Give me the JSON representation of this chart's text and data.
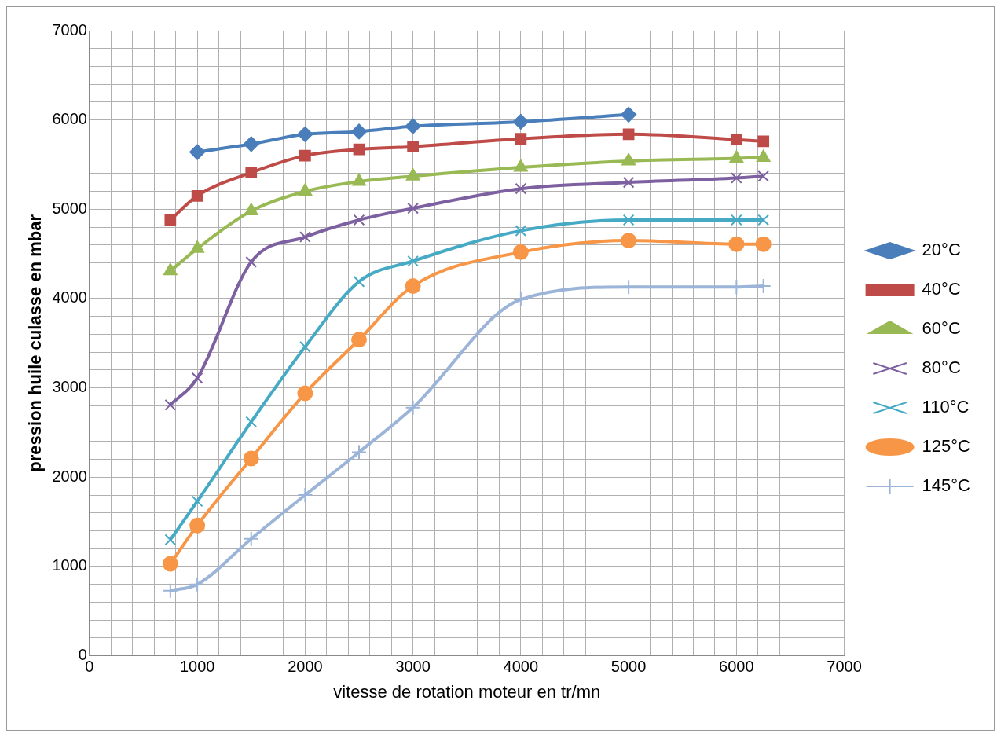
{
  "chart_data": {
    "type": "line",
    "xlabel": "vitesse de rotation moteur en tr/mn",
    "ylabel": "pression huile culasse en mbar",
    "xlim": [
      0,
      7000
    ],
    "ylim": [
      0,
      7000
    ],
    "xticks": [
      0,
      {
        "value": 200,
        "label": null
      },
      {
        "value": 400,
        "label": null
      },
      {
        "value": 600,
        "label": null
      },
      {
        "value": 800,
        "label": null
      },
      1000,
      {
        "value": 1200,
        "label": null
      },
      {
        "value": 1400,
        "label": null
      },
      {
        "value": 1600,
        "label": null
      },
      {
        "value": 1800,
        "label": null
      },
      2000,
      {
        "value": 2200,
        "label": null
      },
      {
        "value": 2400,
        "label": null
      },
      {
        "value": 2600,
        "label": null
      },
      {
        "value": 2800,
        "label": null
      },
      3000,
      {
        "value": 3200,
        "label": null
      },
      {
        "value": 3400,
        "label": null
      },
      {
        "value": 3600,
        "label": null
      },
      {
        "value": 3800,
        "label": null
      },
      4000,
      {
        "value": 4200,
        "label": null
      },
      {
        "value": 4400,
        "label": null
      },
      {
        "value": 4600,
        "label": null
      },
      {
        "value": 4800,
        "label": null
      },
      5000,
      {
        "value": 5200,
        "label": null
      },
      {
        "value": 5400,
        "label": null
      },
      {
        "value": 5600,
        "label": null
      },
      {
        "value": 5800,
        "label": null
      },
      6000,
      {
        "value": 6200,
        "label": null
      },
      {
        "value": 6400,
        "label": null
      },
      {
        "value": 6600,
        "label": null
      },
      {
        "value": 6800,
        "label": null
      },
      7000
    ],
    "yticks": [
      0,
      {
        "value": 200,
        "label": null
      },
      {
        "value": 400,
        "label": null
      },
      {
        "value": 600,
        "label": null
      },
      {
        "value": 800,
        "label": null
      },
      1000,
      {
        "value": 1200,
        "label": null
      },
      {
        "value": 1400,
        "label": null
      },
      {
        "value": 1600,
        "label": null
      },
      {
        "value": 1800,
        "label": null
      },
      2000,
      {
        "value": 2200,
        "label": null
      },
      {
        "value": 2400,
        "label": null
      },
      {
        "value": 2600,
        "label": null
      },
      {
        "value": 2800,
        "label": null
      },
      3000,
      {
        "value": 3200,
        "label": null
      },
      {
        "value": 3400,
        "label": null
      },
      {
        "value": 3600,
        "label": null
      },
      {
        "value": 3800,
        "label": null
      },
      4000,
      {
        "value": 4200,
        "label": null
      },
      {
        "value": 4400,
        "label": null
      },
      {
        "value": 4600,
        "label": null
      },
      {
        "value": 4800,
        "label": null
      },
      5000,
      {
        "value": 5200,
        "label": null
      },
      {
        "value": 5400,
        "label": null
      },
      {
        "value": 5600,
        "label": null
      },
      {
        "value": 5800,
        "label": null
      },
      6000,
      {
        "value": 6200,
        "label": null
      },
      {
        "value": 6400,
        "label": null
      },
      {
        "value": 6600,
        "label": null
      },
      {
        "value": 6800,
        "label": null
      },
      7000
    ],
    "grid": true,
    "legend": "right",
    "series": [
      {
        "name": "20°C",
        "color": "#4a7ebb",
        "marker": "diamond",
        "x": [
          1000,
          1500,
          2000,
          2500,
          3000,
          4000,
          5000
        ],
        "values": [
          5640,
          5730,
          5840,
          5870,
          5930,
          5980,
          6060
        ]
      },
      {
        "name": "40°C",
        "color": "#be4b48",
        "marker": "square",
        "x": [
          750,
          1000,
          1500,
          2000,
          2500,
          3000,
          4000,
          5000,
          6000,
          6250
        ],
        "values": [
          4880,
          5150,
          5410,
          5600,
          5670,
          5700,
          5790,
          5840,
          5780,
          5760
        ]
      },
      {
        "name": "60°C",
        "color": "#98b954",
        "marker": "triangle",
        "x": [
          750,
          1000,
          1500,
          2000,
          2500,
          3000,
          4000,
          5000,
          6000,
          6250
        ],
        "values": [
          4310,
          4560,
          4980,
          5200,
          5310,
          5370,
          5470,
          5540,
          5570,
          5580
        ]
      },
      {
        "name": "80°C",
        "color": "#7d60a0",
        "marker": "cross",
        "x": [
          750,
          1000,
          1500,
          2000,
          2500,
          3000,
          4000,
          5000,
          6000,
          6250
        ],
        "values": [
          2810,
          3110,
          4410,
          4690,
          4880,
          5010,
          5230,
          5300,
          5350,
          5370
        ]
      },
      {
        "name": "110°C",
        "color": "#46aac5",
        "marker": "cross",
        "x": [
          750,
          1000,
          1500,
          2000,
          2500,
          3000,
          4000,
          5000,
          6000,
          6250
        ],
        "values": [
          1300,
          1730,
          2620,
          3460,
          4190,
          4420,
          4760,
          4880,
          4880,
          4880
        ]
      },
      {
        "name": "125°C",
        "color": "#f79646",
        "marker": "circle",
        "x": [
          750,
          1000,
          1500,
          2000,
          2500,
          3000,
          4000,
          5000,
          6000,
          6250
        ],
        "values": [
          1030,
          1460,
          2210,
          2940,
          3540,
          4140,
          4520,
          4650,
          4610,
          4610
        ]
      },
      {
        "name": "145°C",
        "color": "#9bb4d8",
        "marker": "plus",
        "x": [
          750,
          1000,
          1500,
          2000,
          2500,
          3000,
          4000,
          5000,
          6000,
          6250
        ],
        "values": [
          730,
          800,
          1310,
          1800,
          2280,
          2780,
          3990,
          4130,
          4130,
          4140
        ]
      }
    ]
  }
}
